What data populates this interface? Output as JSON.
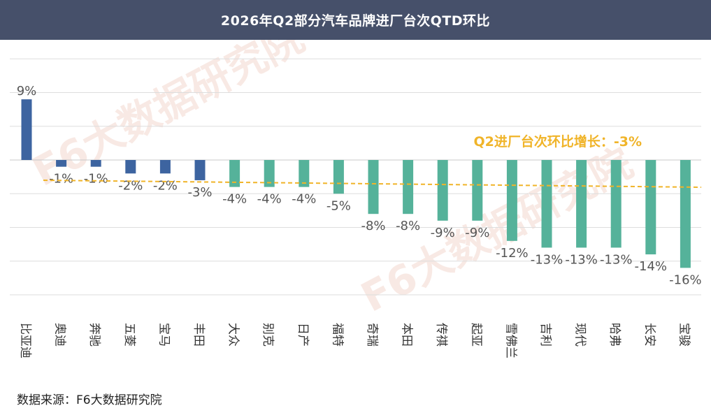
{
  "chart_data": {
    "type": "bar",
    "title": "2026年Q2部分汽车品牌进厂台次QTD环比",
    "categories": [
      "比亚迪",
      "奥迪",
      "奔驰",
      "五菱",
      "宝马",
      "丰田",
      "大众",
      "别克",
      "日产",
      "福特",
      "奇瑞",
      "本田",
      "传祺",
      "起亚",
      "雪佛兰",
      "吉利",
      "现代",
      "哈弗",
      "长安",
      "宝骏"
    ],
    "values": [
      9,
      -1,
      -1,
      -2,
      -2,
      -3,
      -4,
      -4,
      -4,
      -5,
      -8,
      -8,
      -9,
      -9,
      -12,
      -13,
      -13,
      -13,
      -14,
      -16
    ],
    "value_labels": [
      "9%",
      "-1%",
      "-1%",
      "-2%",
      "-2%",
      "-3%",
      "-4%",
      "-4%",
      "-4%",
      "-5%",
      "-8%",
      "-8%",
      "-9%",
      "-9%",
      "-12%",
      "-13%",
      "-13%",
      "-13%",
      "-14%",
      "-16%"
    ],
    "ylim": [
      -20,
      15
    ],
    "grid": true,
    "colors": {
      "highlight": "#3d64a0",
      "normal": "#55b29a",
      "trend": "#f0b429"
    },
    "highlight_count": 6,
    "reference_line": {
      "label": "Q2进厂台次环比增长：-3%",
      "value": -3
    }
  },
  "watermark": "F6大数据研究院",
  "source": "数据来源：F6大数据研究院"
}
